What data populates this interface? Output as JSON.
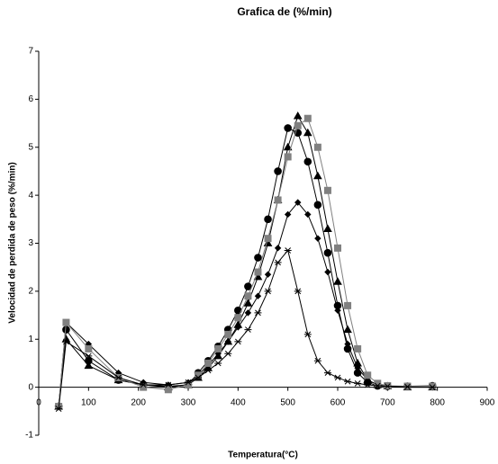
{
  "chart_data": {
    "type": "line",
    "title": "Grafica de (%/min)",
    "x_label": "Temperatura(°C)",
    "y_label": "Velocidad de perdida de peso (%/min)",
    "x": [
      40,
      55,
      100,
      160,
      210,
      260,
      300,
      320,
      340,
      360,
      380,
      400,
      420,
      440,
      460,
      480,
      500,
      520,
      540,
      560,
      580,
      600,
      620,
      640,
      660,
      680,
      700,
      740,
      790
    ],
    "series": [
      {
        "color": "#000000",
        "marker": "diamond",
        "values": [
          -0.4,
          1.35,
          0.9,
          0.3,
          0.1,
          0.05,
          0.1,
          0.25,
          0.45,
          0.7,
          0.95,
          1.25,
          1.55,
          1.9,
          2.35,
          2.9,
          3.6,
          3.85,
          3.6,
          3.1,
          2.4,
          1.6,
          0.9,
          0.4,
          0.15,
          0.05,
          0.02,
          0.01,
          0
        ]
      },
      {
        "color": "#000000",
        "marker": "circle",
        "values": [
          -0.4,
          1.2,
          0.55,
          0.15,
          0.05,
          0.02,
          0.05,
          0.3,
          0.55,
          0.85,
          1.2,
          1.6,
          2.1,
          2.7,
          3.5,
          4.5,
          5.4,
          5.3,
          4.7,
          3.8,
          2.8,
          1.7,
          0.8,
          0.3,
          0.1,
          0.03,
          0.02,
          0.02,
          0.03
        ]
      },
      {
        "color": "#000000",
        "marker": "triangle",
        "values": [
          -0.4,
          1.0,
          0.45,
          0.15,
          0.05,
          0,
          0.05,
          0.2,
          0.4,
          0.65,
          0.95,
          1.3,
          1.75,
          2.3,
          3.0,
          3.9,
          5.0,
          5.65,
          5.3,
          4.4,
          3.3,
          2.2,
          1.2,
          0.5,
          0.15,
          0.05,
          0.02,
          0,
          0
        ]
      },
      {
        "color": "#808080",
        "marker": "square",
        "values": [
          -0.4,
          1.35,
          0.8,
          0.2,
          0,
          -0.05,
          0.05,
          0.25,
          0.5,
          0.8,
          1.1,
          1.45,
          1.9,
          2.4,
          3.1,
          3.9,
          4.8,
          5.45,
          5.6,
          5.0,
          4.1,
          2.9,
          1.7,
          0.8,
          0.25,
          0.08,
          0.03,
          0.02,
          0.02
        ]
      },
      {
        "color": "#000000",
        "marker": "star",
        "values": [
          -0.45,
          0.95,
          0.65,
          0.2,
          0.05,
          0.05,
          0.1,
          0.2,
          0.35,
          0.5,
          0.7,
          0.95,
          1.2,
          1.55,
          2.0,
          2.6,
          2.85,
          2.0,
          1.1,
          0.55,
          0.3,
          0.2,
          0.12,
          0.08,
          0.05,
          0.03,
          0.02,
          0.01,
          0
        ]
      }
    ],
    "xlim": [
      0,
      900
    ],
    "xticks": [
      0,
      100,
      200,
      300,
      400,
      500,
      600,
      700,
      800,
      900
    ],
    "ylim": [
      -1,
      7
    ],
    "yticks": [
      -1,
      0,
      1,
      2,
      3,
      4,
      5,
      6,
      7
    ],
    "grid": false
  }
}
